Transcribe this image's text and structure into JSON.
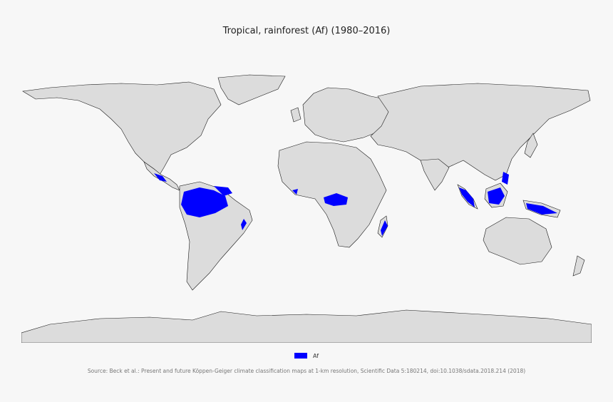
{
  "title": "Tropical, rainforest (Af) (1980–2016)",
  "legend": {
    "label": "Af",
    "color": "#0000ff"
  },
  "source": "Source: Beck et al.: Present and future Köppen-Geiger climate classification maps at 1-km resolution, Scientific Data 5:180214, doi:10.1038/sdata.2018.214 (2018)",
  "colors": {
    "land": "#dcdcdc",
    "border": "#1a1a1a",
    "highlight": "#0000ff",
    "background": "#f7f7f7"
  }
}
